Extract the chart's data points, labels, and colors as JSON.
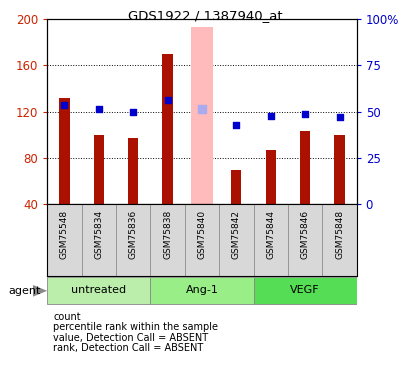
{
  "title": "GDS1922 / 1387940_at",
  "samples": [
    "GSM75548",
    "GSM75834",
    "GSM75836",
    "GSM75838",
    "GSM75840",
    "GSM75842",
    "GSM75844",
    "GSM75846",
    "GSM75848"
  ],
  "counts": [
    132,
    100,
    97,
    170,
    null,
    70,
    87,
    103,
    100
  ],
  "ranks_left": [
    126,
    122,
    120,
    130,
    null,
    108,
    116,
    118,
    115
  ],
  "absent_value": [
    null,
    null,
    null,
    null,
    193,
    null,
    null,
    null,
    null
  ],
  "absent_rank_left": [
    null,
    null,
    null,
    null,
    122,
    null,
    null,
    null,
    null
  ],
  "groups": [
    {
      "label": "untreated",
      "start": 0,
      "end": 2,
      "color": "#bbeeaa"
    },
    {
      "label": "Ang-1",
      "start": 3,
      "end": 5,
      "color": "#99ee88"
    },
    {
      "label": "VEGF",
      "start": 6,
      "end": 8,
      "color": "#55dd55"
    }
  ],
  "ylim": [
    40,
    200
  ],
  "y2lim": [
    0,
    100
  ],
  "bar_color": "#aa1100",
  "rank_color": "#0000cc",
  "absent_bar_color": "#ffbbbb",
  "absent_rank_color": "#aaaaee",
  "bar_width": 0.3,
  "absent_bar_width": 0.65,
  "plot_bg": "#ffffff",
  "left_tick_color": "#cc2200",
  "right_tick_color": "#0000cc",
  "agent_label": "agent",
  "legend_items": [
    {
      "color": "#cc2200",
      "label": "count"
    },
    {
      "color": "#0000cc",
      "label": "percentile rank within the sample"
    },
    {
      "color": "#ffbbbb",
      "label": "value, Detection Call = ABSENT"
    },
    {
      "color": "#aaaaee",
      "label": "rank, Detection Call = ABSENT"
    }
  ]
}
